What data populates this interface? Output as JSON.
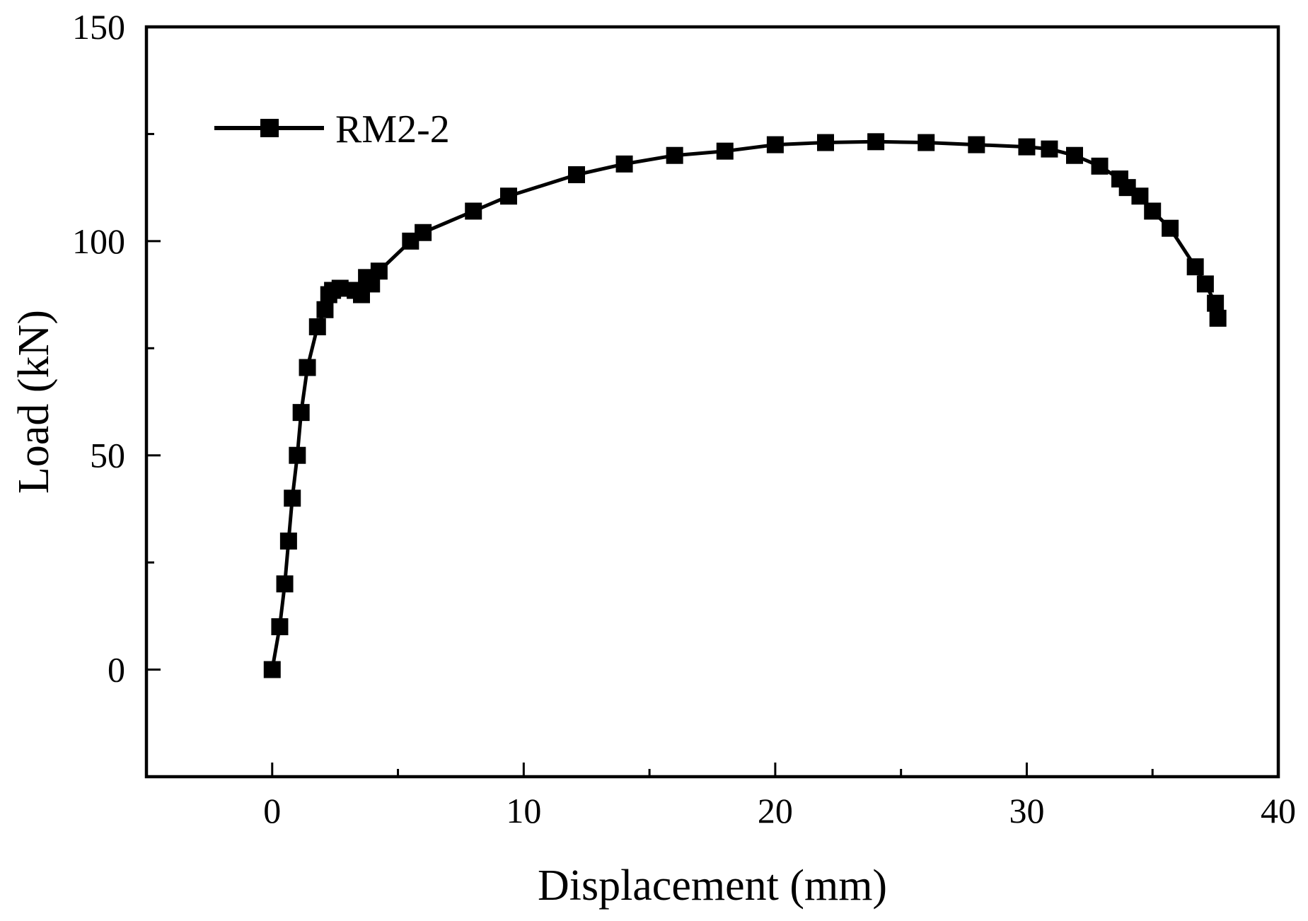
{
  "chart_data": {
    "type": "line",
    "xlabel": "Displacement (mm)",
    "ylabel": "Load (kN)",
    "xlim": [
      -5,
      40
    ],
    "ylim": [
      -25,
      150
    ],
    "x_ticks": [
      0,
      10,
      20,
      30,
      40
    ],
    "x_tick_labels": [
      "0",
      "10",
      "20",
      "30",
      "40"
    ],
    "y_ticks": [
      0,
      50,
      100,
      150
    ],
    "y_tick_labels": [
      "0",
      "50",
      "100",
      "150"
    ],
    "y_minor_ticks": [
      25,
      75,
      125
    ],
    "grid": false,
    "legend_position": "top-left",
    "marker": "square",
    "line_color": "#000000",
    "series": [
      {
        "name": "RM2-2",
        "x": [
          0,
          0.3,
          0.5,
          0.65,
          0.8,
          1.0,
          1.15,
          1.4,
          1.8,
          2.1,
          2.25,
          2.4,
          2.7,
          3.3,
          3.55,
          3.75,
          3.95,
          4.25,
          5.5,
          6.0,
          8.0,
          9.4,
          12.1,
          14.0,
          16.0,
          18.0,
          20.0,
          22.0,
          24.0,
          26.0,
          28.0,
          30.0,
          30.9,
          31.9,
          32.9,
          33.7,
          34.0,
          34.5,
          35.0,
          35.7,
          36.7,
          37.1,
          37.5,
          37.6
        ],
        "y": [
          0,
          10,
          20,
          30,
          40,
          50,
          60,
          70.5,
          80,
          84,
          87.5,
          88.5,
          89,
          88.5,
          87.5,
          91.5,
          90,
          93,
          100,
          102,
          107,
          110.5,
          115.5,
          118,
          120,
          121,
          122.5,
          123,
          123.2,
          123,
          122.5,
          122,
          121.5,
          120,
          117.5,
          114.5,
          112.5,
          110.5,
          107,
          103,
          94,
          90,
          85.5,
          82
        ]
      }
    ]
  }
}
